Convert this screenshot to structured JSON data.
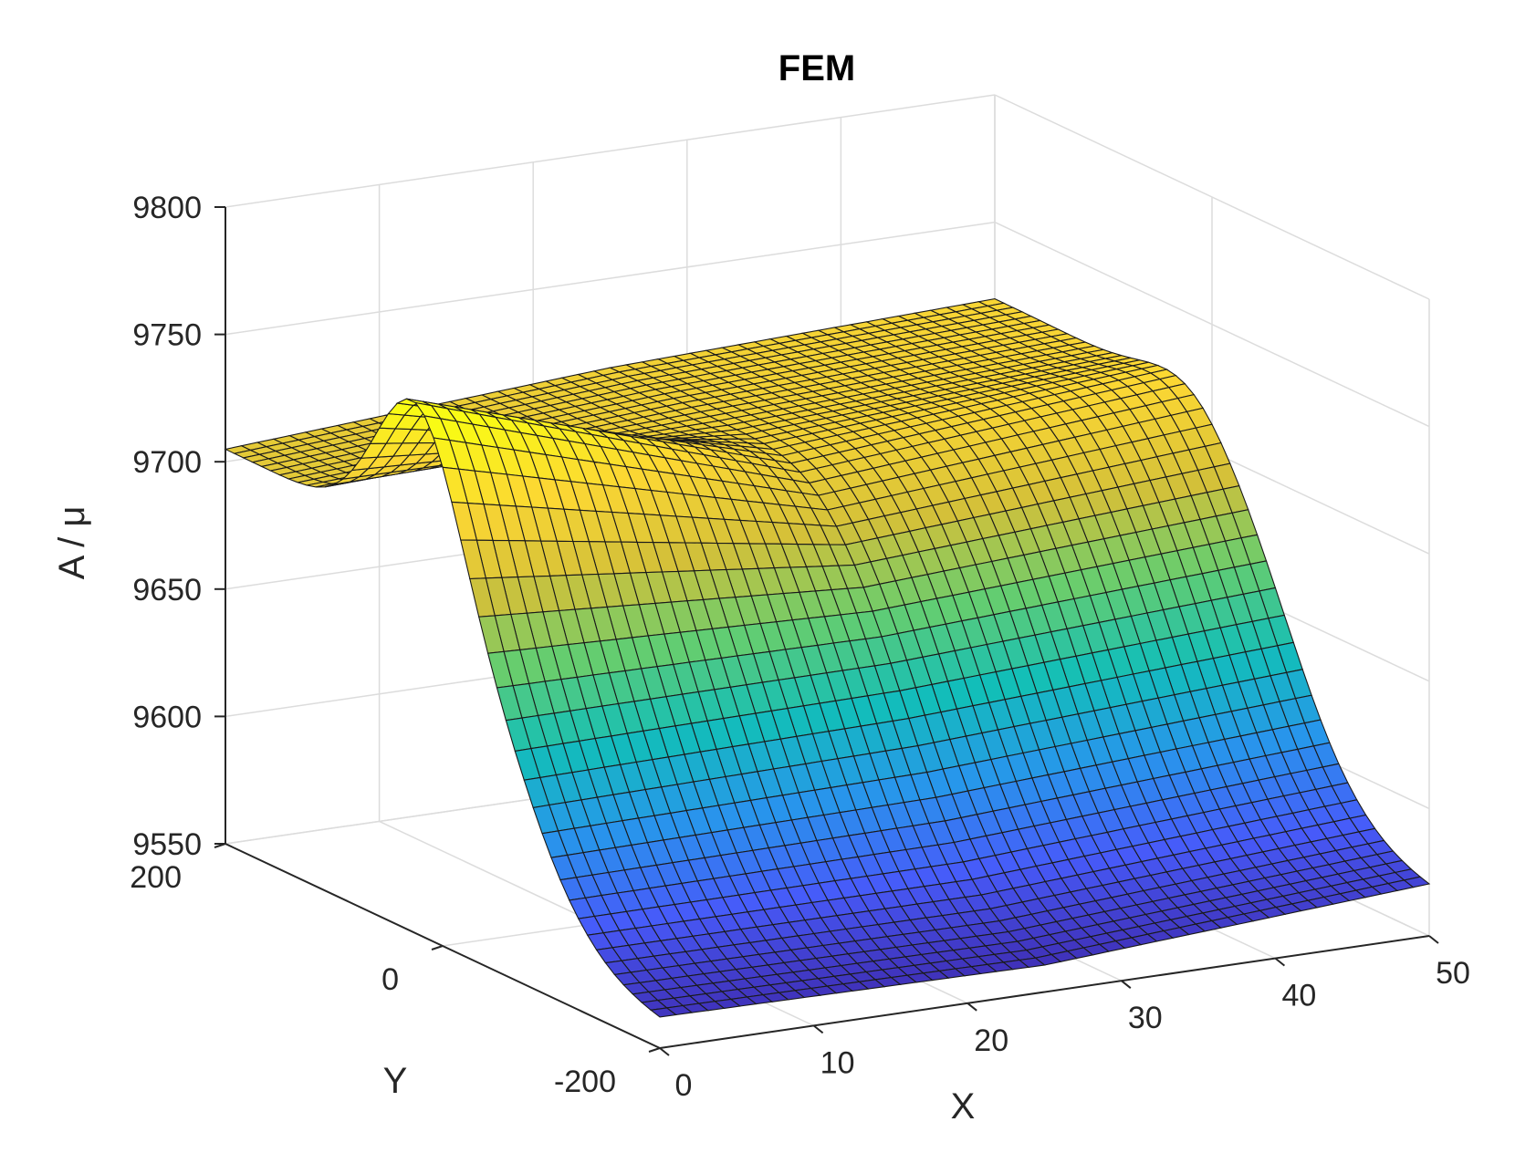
{
  "chart_data": {
    "type": "surface",
    "title": "FEM",
    "xlabel": "X",
    "ylabel": "Y",
    "zlabel": "A / μ",
    "xlim": [
      0,
      50
    ],
    "ylim": [
      -200,
      200
    ],
    "zlim": [
      9550,
      9800
    ],
    "xticks": [
      "0",
      "10",
      "20",
      "30",
      "40",
      "50"
    ],
    "yticks": [
      "-200",
      "0",
      "200"
    ],
    "zticks": [
      "9550",
      "9600",
      "9650",
      "9700",
      "9750",
      "9800"
    ],
    "grid": true,
    "colormap": "parula",
    "surface_samples": {
      "x": [
        0,
        25,
        50
      ],
      "y_values_note_free": true,
      "points": [
        {
          "x": 0,
          "y": 200,
          "z": 9705
        },
        {
          "x": 0,
          "y": 0,
          "z": 9750
        },
        {
          "x": 0,
          "y": -200,
          "z": 9558
        },
        {
          "x": 25,
          "y": 200,
          "z": 9715
        },
        {
          "x": 25,
          "y": 0,
          "z": 9700
        },
        {
          "x": 25,
          "y": -200,
          "z": 9556
        },
        {
          "x": 50,
          "y": 200,
          "z": 9720
        },
        {
          "x": 50,
          "y": 0,
          "z": 9713
        },
        {
          "x": 50,
          "y": -200,
          "z": 9566
        }
      ]
    }
  }
}
